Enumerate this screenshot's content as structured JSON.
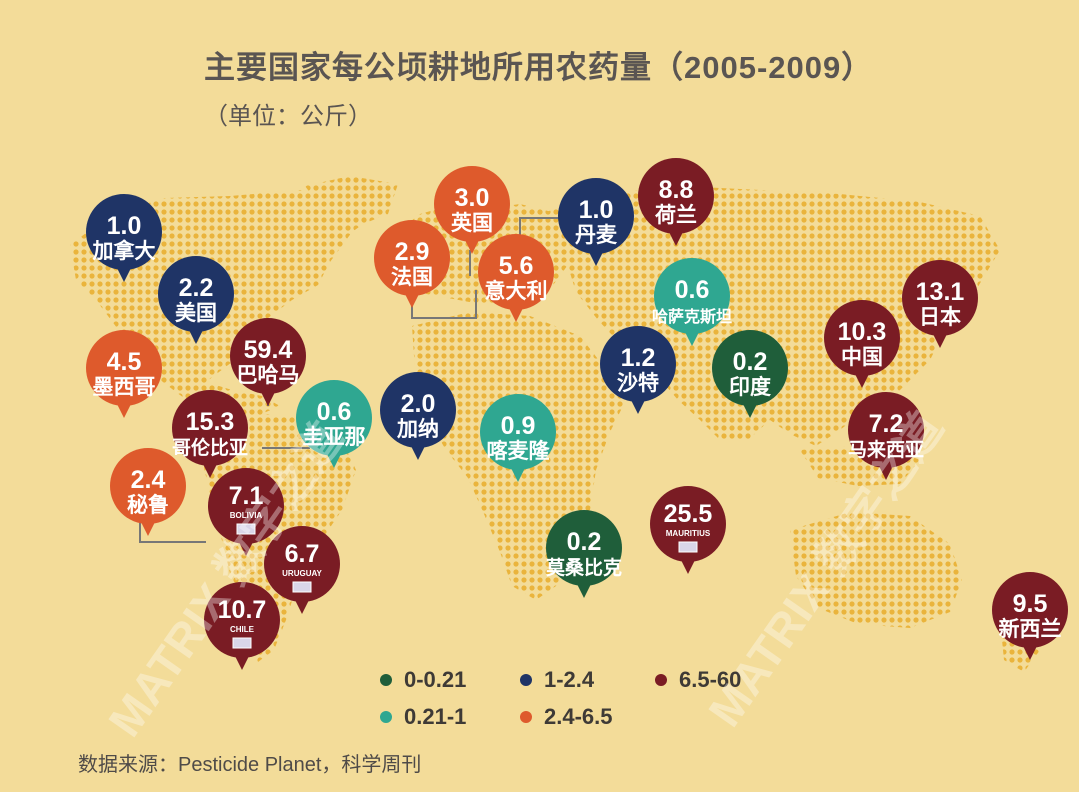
{
  "title": "主要国家每公顷耕地所用农药量（2005-2009）",
  "unit": "（单位：公斤）",
  "source": "数据来源：Pesticide Planet，科学周刊",
  "watermark": "MATRIX 数字之道",
  "legend": [
    {
      "label": "0-0.21",
      "color": "#1f5e3a"
    },
    {
      "label": "1-2.4",
      "color": "#1f3466"
    },
    {
      "label": "6.5-60",
      "color": "#7a1c24"
    },
    {
      "label": "0.21-1",
      "color": "#2fa791"
    },
    {
      "label": "2.4-6.5",
      "color": "#de5a2c"
    }
  ],
  "countries": [
    {
      "value": "1.0",
      "name": "加拿大",
      "range": "1-2.4"
    },
    {
      "value": "2.2",
      "name": "美国",
      "range": "1-2.4"
    },
    {
      "value": "59.4",
      "name": "巴哈马",
      "range": "6.5-60"
    },
    {
      "value": "4.5",
      "name": "墨西哥",
      "range": "2.4-6.5"
    },
    {
      "value": "15.3",
      "name": "哥伦比亚",
      "range": "6.5-60"
    },
    {
      "value": "0.6",
      "name": "圭亚那",
      "range": "0.21-1"
    },
    {
      "value": "2.0",
      "name": "加纳",
      "range": "1-2.4"
    },
    {
      "value": "2.4",
      "name": "秘鲁",
      "range": "2.4-6.5"
    },
    {
      "value": "7.1",
      "name": "BOLIVIA",
      "range": "6.5-60",
      "flag": true
    },
    {
      "value": "6.7",
      "name": "URUGUAY",
      "range": "6.5-60",
      "flag": true
    },
    {
      "value": "10.7",
      "name": "CHILE",
      "range": "6.5-60",
      "flag": true
    },
    {
      "value": "3.0",
      "name": "英国",
      "range": "2.4-6.5"
    },
    {
      "value": "2.9",
      "name": "法国",
      "range": "2.4-6.5"
    },
    {
      "value": "5.6",
      "name": "意大利",
      "range": "2.4-6.5"
    },
    {
      "value": "1.0",
      "name": "丹麦",
      "range": "1-2.4"
    },
    {
      "value": "8.8",
      "name": "荷兰",
      "range": "6.5-60"
    },
    {
      "value": "0.6",
      "name": "哈萨克斯坦",
      "range": "0.21-1"
    },
    {
      "value": "1.2",
      "name": "沙特",
      "range": "1-2.4"
    },
    {
      "value": "0.2",
      "name": "印度",
      "range": "0-0.21"
    },
    {
      "value": "0.9",
      "name": "喀麦隆",
      "range": "0.21-1"
    },
    {
      "value": "0.2",
      "name": "莫桑比克",
      "range": "0-0.21"
    },
    {
      "value": "25.5",
      "name": "MAURITIUS",
      "range": "6.5-60",
      "flag": true
    },
    {
      "value": "10.3",
      "name": "中国",
      "range": "6.5-60"
    },
    {
      "value": "13.1",
      "name": "日本",
      "range": "6.5-60"
    },
    {
      "value": "7.2",
      "name": "马来西亚",
      "range": "6.5-60"
    },
    {
      "value": "9.5",
      "name": "新西兰",
      "range": "6.5-60"
    }
  ]
}
